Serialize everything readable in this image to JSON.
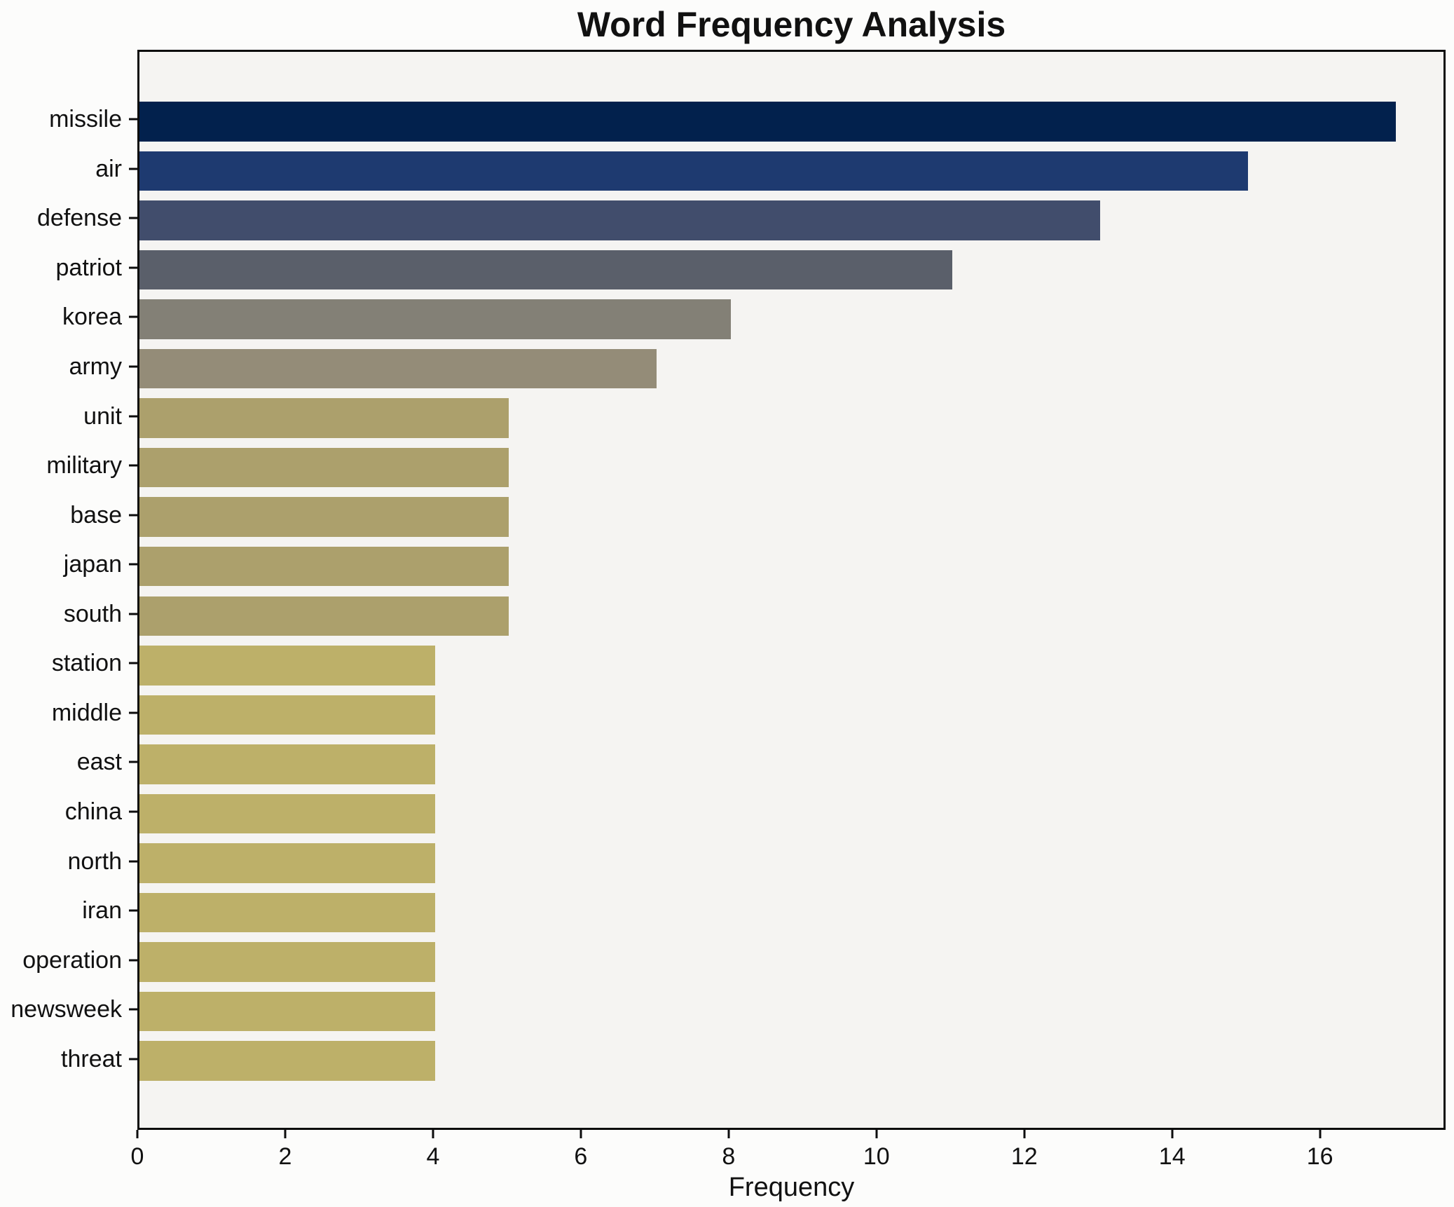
{
  "chart_data": {
    "type": "bar",
    "orientation": "horizontal",
    "title": "Word Frequency Analysis",
    "xlabel": "Frequency",
    "ylabel": "",
    "categories": [
      "missile",
      "air",
      "defense",
      "patriot",
      "korea",
      "army",
      "unit",
      "military",
      "base",
      "japan",
      "south",
      "station",
      "middle",
      "east",
      "china",
      "north",
      "iran",
      "operation",
      "newsweek",
      "threat"
    ],
    "values": [
      17,
      15,
      13,
      11,
      8,
      7,
      5,
      5,
      5,
      5,
      5,
      4,
      4,
      4,
      4,
      4,
      4,
      4,
      4,
      4
    ],
    "bar_colors": [
      "#02214d",
      "#1e3a70",
      "#414d6c",
      "#5a5f6a",
      "#838076",
      "#948c78",
      "#aca06c",
      "#aca06c",
      "#aca06c",
      "#aca06c",
      "#aca06c",
      "#bdb069",
      "#bdb069",
      "#bdb069",
      "#bdb069",
      "#bdb069",
      "#bdb069",
      "#bdb069",
      "#bdb069",
      "#bdb069"
    ],
    "xticks": [
      0,
      2,
      4,
      6,
      8,
      10,
      12,
      14,
      16
    ],
    "xlim": [
      0,
      17.7
    ],
    "grid": false,
    "legend": "none",
    "colors": {
      "figure_background": "#fcfcfb",
      "plot_background": "#f5f4f2",
      "spine": "#0d0d0d",
      "text": "#111111"
    }
  }
}
